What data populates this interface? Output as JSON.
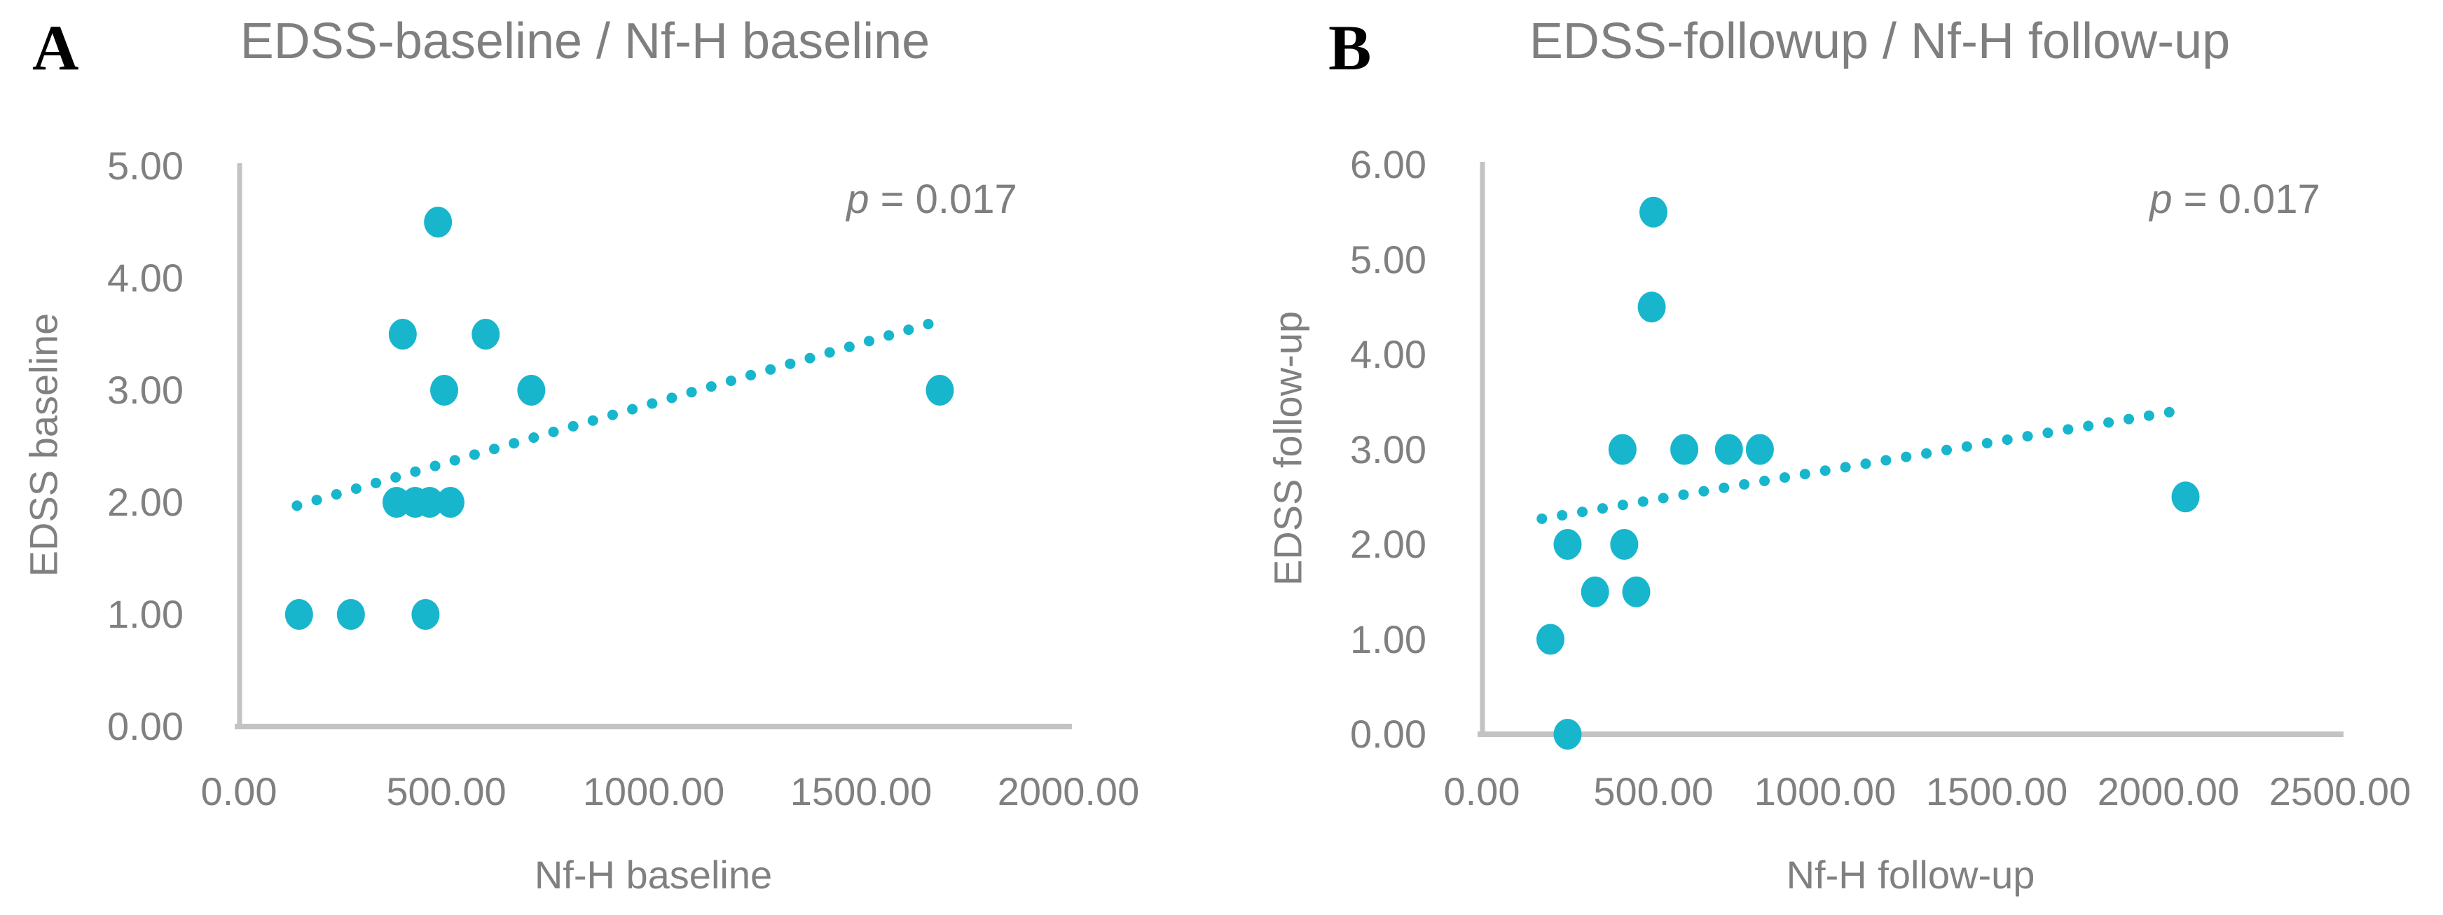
{
  "page": {
    "background": "#ffffff"
  },
  "colors": {
    "marker": "#17b6cd",
    "trend": "#17b6cd",
    "axis_line": "#c3c3c3",
    "tick_text": "#808080",
    "title_text": "#7f7f7f",
    "panel_letter": "#000000"
  },
  "chart_data": [
    {
      "type": "scatter",
      "panel_letter": "A",
      "title": "EDSS-baseline / Nf-H baseline",
      "annotation": {
        "italic": "p",
        "text": " = 0.017"
      },
      "xlabel": "Nf-H baseline",
      "ylabel": "EDSS baseline",
      "xlim": [
        0,
        2000
      ],
      "ylim": [
        0,
        5
      ],
      "x_ticks": [
        0,
        500,
        1000,
        1500,
        2000
      ],
      "x_tick_labels": [
        "0.00",
        "500.00",
        "1000.00",
        "1500.00",
        "2000.00"
      ],
      "y_ticks": [
        0,
        1,
        2,
        3,
        4,
        5
      ],
      "y_tick_labels": [
        "0.00",
        "1.00",
        "2.00",
        "3.00",
        "4.00",
        "5.00"
      ],
      "grid": false,
      "legend": null,
      "points": [
        [
          145,
          1.0
        ],
        [
          270,
          1.0
        ],
        [
          450,
          1.0
        ],
        [
          380,
          2.0
        ],
        [
          425,
          2.0
        ],
        [
          460,
          2.0
        ],
        [
          510,
          2.0
        ],
        [
          495,
          3.0
        ],
        [
          705,
          3.0
        ],
        [
          1690,
          3.0
        ],
        [
          395,
          3.5
        ],
        [
          595,
          3.5
        ],
        [
          480,
          4.5
        ]
      ],
      "trend": {
        "style": "dotted",
        "x1": 140,
        "y1": 1.97,
        "x2": 1690,
        "y2": 3.62
      }
    },
    {
      "type": "scatter",
      "panel_letter": "B",
      "title": "EDSS-followup / Nf-H follow-up",
      "annotation": {
        "italic": "p",
        "text": " = 0.017"
      },
      "xlabel": "Nf-H follow-up",
      "ylabel": "EDSS follow-up",
      "xlim": [
        0,
        2500
      ],
      "ylim": [
        0,
        6
      ],
      "x_ticks": [
        0,
        500,
        1000,
        1500,
        2000,
        2500
      ],
      "x_tick_labels": [
        "0.00",
        "500.00",
        "1000.00",
        "1500.00",
        "2000.00",
        "2500.00"
      ],
      "y_ticks": [
        0,
        1,
        2,
        3,
        4,
        5,
        6
      ],
      "y_tick_labels": [
        "0.00",
        "1.00",
        "2.00",
        "3.00",
        "4.00",
        "5.00",
        "6.00"
      ],
      "grid": false,
      "legend": null,
      "points": [
        [
          250,
          0.0
        ],
        [
          200,
          1.0
        ],
        [
          330,
          1.5
        ],
        [
          450,
          1.5
        ],
        [
          250,
          2.0
        ],
        [
          415,
          2.0
        ],
        [
          2050,
          2.5
        ],
        [
          410,
          3.0
        ],
        [
          590,
          3.0
        ],
        [
          720,
          3.0
        ],
        [
          810,
          3.0
        ],
        [
          495,
          4.5
        ],
        [
          500,
          5.5
        ]
      ],
      "trend": {
        "style": "dotted",
        "x1": 175,
        "y1": 2.27,
        "x2": 2015,
        "y2": 3.4
      }
    }
  ]
}
